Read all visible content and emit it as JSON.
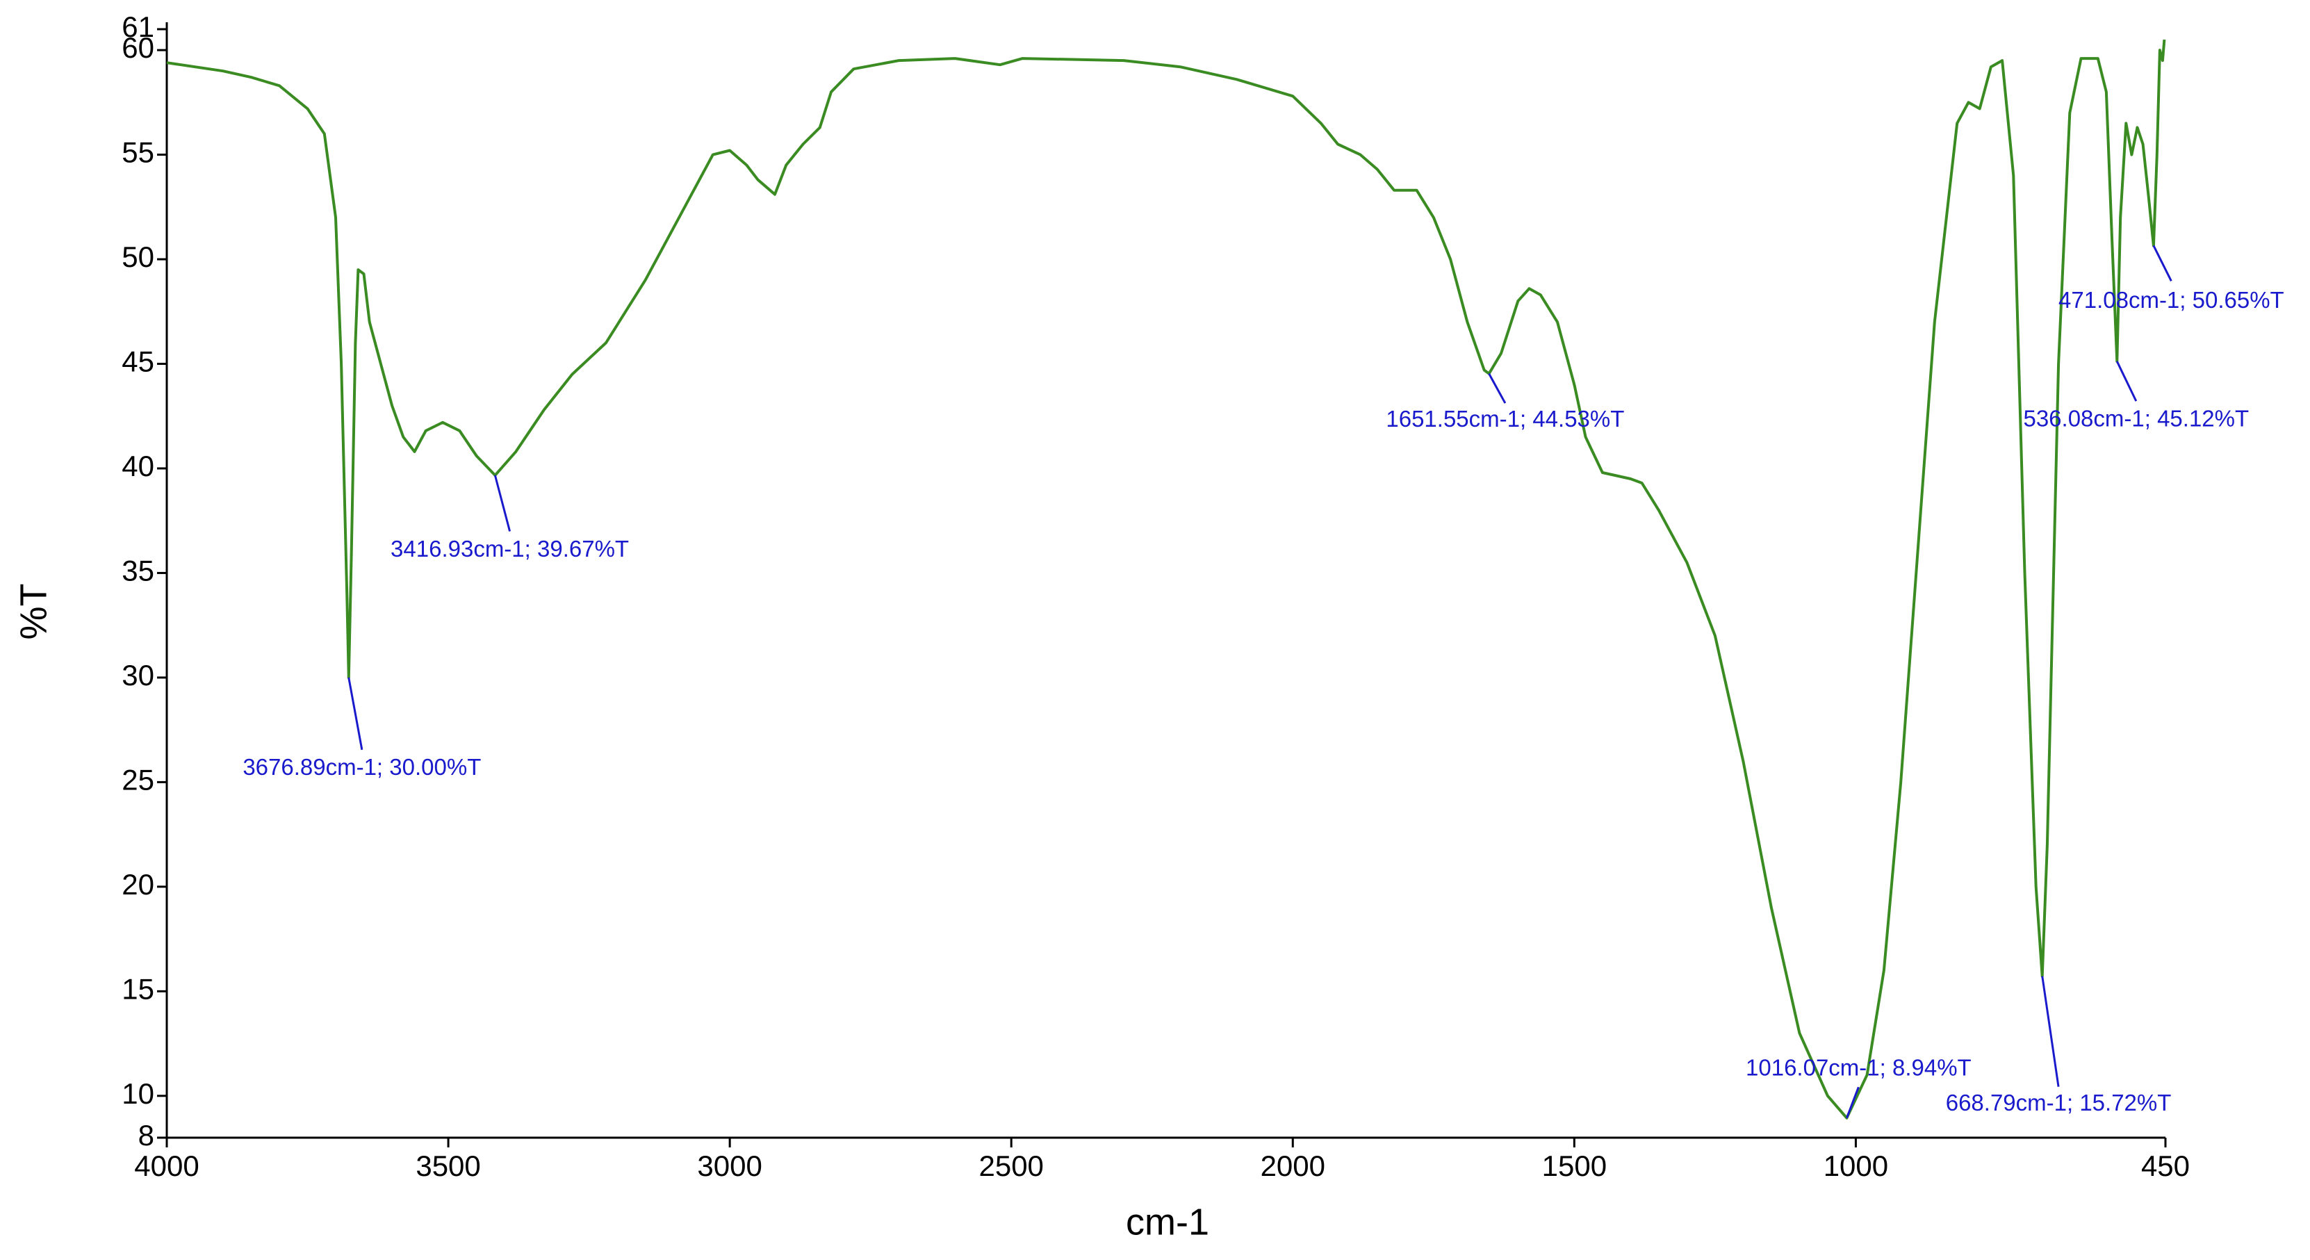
{
  "chart_data": {
    "type": "line",
    "xlabel": "cm-1",
    "ylabel": "%T",
    "xlim": [
      4000,
      450
    ],
    "ylim": [
      8,
      61
    ],
    "xticks": [
      4000,
      3500,
      3000,
      2500,
      2000,
      1500,
      1000,
      450
    ],
    "yticks": [
      8,
      10,
      15,
      20,
      25,
      30,
      35,
      40,
      45,
      50,
      55,
      60,
      61
    ],
    "color": "#3a8c22",
    "x": [
      4000,
      3900,
      3850,
      3800,
      3750,
      3720,
      3700,
      3690,
      3680,
      3676.89,
      3672,
      3665,
      3660,
      3650,
      3640,
      3620,
      3600,
      3580,
      3560,
      3540,
      3510,
      3480,
      3450,
      3416.93,
      3380,
      3330,
      3280,
      3220,
      3150,
      3080,
      3030,
      3000,
      2970,
      2950,
      2920,
      2900,
      2870,
      2840,
      2820,
      2780,
      2700,
      2600,
      2520,
      2480,
      2300,
      2200,
      2100,
      2000,
      1950,
      1920,
      1880,
      1850,
      1820,
      1780,
      1750,
      1720,
      1690,
      1660,
      1651.55,
      1630,
      1600,
      1580,
      1560,
      1530,
      1500,
      1480,
      1450,
      1400,
      1380,
      1350,
      1300,
      1250,
      1200,
      1150,
      1100,
      1050,
      1016.07,
      980,
      950,
      920,
      890,
      860,
      820,
      800,
      780,
      760,
      740,
      720,
      700,
      680,
      668.79,
      660,
      640,
      620,
      600,
      570,
      555,
      545,
      536.08,
      530,
      520,
      510,
      500,
      490,
      480,
      471.08,
      465,
      460,
      455,
      452
    ],
    "values": [
      59.4,
      59.0,
      58.7,
      58.3,
      57.2,
      56.0,
      52,
      45,
      34,
      30.0,
      36,
      46,
      49.5,
      49.3,
      47,
      45,
      43,
      41.5,
      40.8,
      41.8,
      42.2,
      41.8,
      40.6,
      39.67,
      40.8,
      42.8,
      44.5,
      46,
      49,
      52.5,
      55,
      55.2,
      54.5,
      53.8,
      53.1,
      54.5,
      55.5,
      56.3,
      58,
      59.1,
      59.5,
      59.6,
      59.3,
      59.6,
      59.5,
      59.2,
      58.6,
      57.8,
      56.5,
      55.5,
      55.0,
      54.3,
      53.3,
      53.3,
      52,
      50,
      47,
      44.7,
      44.53,
      45.5,
      48,
      48.6,
      48.3,
      47,
      44,
      41.5,
      39.8,
      39.5,
      39.3,
      38,
      35.5,
      32,
      26,
      19,
      13,
      10,
      8.94,
      11,
      16,
      25,
      36,
      47,
      56.5,
      57.5,
      57.2,
      59.2,
      59.5,
      54,
      35,
      20,
      15.72,
      22,
      45,
      57,
      59.6,
      59.6,
      58,
      51,
      45.12,
      52,
      56.5,
      55,
      56.3,
      55.5,
      53,
      50.65,
      55,
      60,
      59.5,
      60.5
    ],
    "annotation_color": "#1a1acd",
    "annotations": [
      {
        "text": "3676.89cm-1; 30.00%T",
        "x": 3676.89,
        "y": 30.0
      },
      {
        "text": "3416.93cm-1; 39.67%T",
        "x": 3416.93,
        "y": 39.67
      },
      {
        "text": "1651.55cm-1; 44.53%T",
        "x": 1651.55,
        "y": 44.53
      },
      {
        "text": "1016.07cm-1; 8.94%T",
        "x": 1016.07,
        "y": 8.94
      },
      {
        "text": "668.79cm-1; 15.72%T",
        "x": 668.79,
        "y": 15.72
      },
      {
        "text": "536.08cm-1; 45.12%T",
        "x": 536.08,
        "y": 45.12
      },
      {
        "text": "471.08cm-1; 50.65%T",
        "x": 471.08,
        "y": 50.65
      }
    ]
  }
}
